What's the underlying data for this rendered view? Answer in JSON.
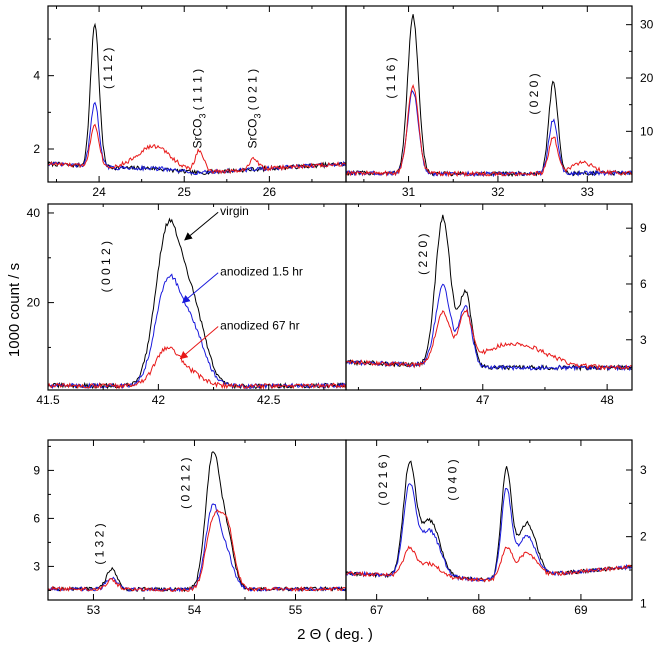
{
  "figure": {
    "ylabel": "1000 count / s",
    "xlabel": "2 Θ ( deg. )"
  },
  "chart_data": [
    {
      "type": "line",
      "panel": "top-left",
      "xlim": [
        23.4,
        26.9
      ],
      "ylim": [
        1.1,
        5.9
      ],
      "xticks": [
        24,
        25,
        26
      ],
      "yticks": [
        2,
        4
      ],
      "yaxis_side": "left",
      "tick_labels_x": [
        "24",
        "25",
        "26"
      ],
      "tick_labels_y": [
        "2",
        "4"
      ],
      "annotations": [
        {
          "text": "( 1 1 2 )",
          "x": 24.15,
          "y": 4.2,
          "rotate": true
        },
        {
          "text": "SrCO₃ ( 1 1 1 )",
          "x": 25.2,
          "y": 3.1,
          "rotate": true
        },
        {
          "text": "SrCO₃ ( 0 2 1 )",
          "x": 25.85,
          "y": 3.1,
          "rotate": true
        }
      ],
      "baseline": [
        1.6,
        1.35,
        1.6
      ],
      "peaks": [
        [
          23.95,
          0.05
        ],
        [
          24.65,
          0.2
        ],
        [
          25.18,
          0.05
        ],
        [
          25.82,
          0.05
        ]
      ],
      "series": [
        {
          "name": "virgin",
          "color": "#000000",
          "amps": [
            3.9,
            0.05,
            0.0,
            0.0
          ]
        },
        {
          "name": "anodized 1.5 hr",
          "color": "#1a1adc",
          "amps": [
            1.7,
            0.05,
            0.0,
            0.0
          ]
        },
        {
          "name": "anodized 67 hr",
          "color": "#e81818",
          "amps": [
            1.15,
            0.65,
            0.6,
            0.3
          ]
        }
      ]
    },
    {
      "type": "line",
      "panel": "top-right",
      "xlim": [
        30.3,
        33.5
      ],
      "ylim": [
        0.5,
        33.5
      ],
      "xticks": [
        31,
        32,
        33
      ],
      "yticks": [
        10,
        20,
        30
      ],
      "yaxis_side": "right",
      "tick_labels_x": [
        "31",
        "32",
        "33"
      ],
      "tick_labels_y": [
        "10",
        "20",
        "30"
      ],
      "annotations": [
        {
          "text": "( 1 1 6 )",
          "x": 30.85,
          "y": 20,
          "rotate": true
        },
        {
          "text": "( 0 2 0 )",
          "x": 32.45,
          "y": 17,
          "rotate": true
        }
      ],
      "baseline": [
        2.2,
        2.0,
        2.2
      ],
      "peaks": [
        [
          31.05,
          0.06
        ],
        [
          32.62,
          0.05
        ],
        [
          32.95,
          0.12
        ]
      ],
      "series": [
        {
          "name": "virgin",
          "color": "#000000",
          "amps": [
            29.5,
            17.2,
            0.0
          ]
        },
        {
          "name": "anodized 1.5 hr",
          "color": "#1a1adc",
          "amps": [
            15.5,
            10.2,
            0.0
          ]
        },
        {
          "name": "anodized 67 hr",
          "color": "#e81818",
          "amps": [
            16.5,
            6.8,
            2.0
          ]
        }
      ]
    },
    {
      "type": "line",
      "panel": "middle-left",
      "xlim": [
        41.5,
        42.85
      ],
      "ylim": [
        0.5,
        42
      ],
      "xticks": [
        41.5,
        42,
        42.5
      ],
      "yticks": [
        20,
        40
      ],
      "yaxis_side": "left",
      "tick_labels_x": [
        "41.5",
        "42",
        "42.5"
      ],
      "tick_labels_y": [
        "20",
        "40"
      ],
      "annotations": [
        {
          "text": "( 0 0 1 2 )",
          "x": 41.78,
          "y": 28,
          "rotate": true
        }
      ],
      "labels": [
        {
          "text": "virgin",
          "x": 42.28,
          "y": 39.5,
          "arrow_to": [
            42.12,
            34
          ],
          "color": "#000000"
        },
        {
          "text": "anodized 1.5 hr",
          "x": 42.28,
          "y": 26,
          "arrow_to": [
            42.11,
            20
          ],
          "color": "#1a1adc"
        },
        {
          "text": "anodized 67 hr",
          "x": 42.28,
          "y": 14,
          "arrow_to": [
            42.1,
            7.5
          ],
          "color": "#e81818"
        }
      ],
      "baseline": [
        1.5,
        1.3,
        1.5
      ],
      "peaks": [
        [
          42.04,
          0.055
        ],
        [
          42.15,
          0.06
        ]
      ],
      "series": [
        {
          "name": "virgin",
          "color": "#000000",
          "amps": [
            33.0,
            18.0
          ]
        },
        {
          "name": "anodized 1.5 hr",
          "color": "#1a1adc",
          "amps": [
            22.0,
            12.5
          ]
        },
        {
          "name": "anodized 67 hr",
          "color": "#e81818",
          "amps": [
            8.2,
            2.5
          ]
        }
      ]
    },
    {
      "type": "line",
      "panel": "middle-right",
      "xlim": [
        45.9,
        48.2
      ],
      "ylim": [
        0.3,
        10.3
      ],
      "xticks": [
        47,
        48
      ],
      "yticks": [
        3,
        6,
        9
      ],
      "yaxis_side": "right",
      "tick_labels_x": [
        "47",
        "48"
      ],
      "tick_labels_y": [
        "3",
        "6",
        "9"
      ],
      "annotations": [
        {
          "text": "( 2 2 0 )",
          "x": 46.55,
          "y": 7.6,
          "rotate": true
        }
      ],
      "baseline": [
        1.8,
        1.5,
        1.5
      ],
      "peaks": [
        [
          46.68,
          0.06
        ],
        [
          46.86,
          0.05
        ],
        [
          47.25,
          0.25
        ]
      ],
      "series": [
        {
          "name": "virgin",
          "color": "#000000",
          "amps": [
            8.0,
            4.0,
            0.0
          ]
        },
        {
          "name": "anodized 1.5 hr",
          "color": "#1a1adc",
          "amps": [
            4.3,
            3.2,
            0.0
          ]
        },
        {
          "name": "anodized 67 hr",
          "color": "#e81818",
          "amps": [
            2.8,
            2.6,
            1.3
          ]
        }
      ]
    },
    {
      "type": "line",
      "panel": "bottom-left",
      "xlim": [
        52.55,
        55.5
      ],
      "ylim": [
        0.9,
        10.9
      ],
      "xticks": [
        53,
        54,
        55
      ],
      "yticks": [
        3,
        6,
        9
      ],
      "yaxis_side": "left",
      "tick_labels_x": [
        "53",
        "54",
        "55"
      ],
      "tick_labels_y": [
        "3",
        "6",
        "9"
      ],
      "annotations": [
        {
          "text": "( 1 3 2 )",
          "x": 53.1,
          "y": 4.4,
          "rotate": true
        },
        {
          "text": "( 0 2 1 2 )",
          "x": 53.95,
          "y": 8.2,
          "rotate": true
        }
      ],
      "baseline": [
        1.6,
        1.55,
        1.6
      ],
      "peaks": [
        [
          53.18,
          0.05
        ],
        [
          54.18,
          0.07
        ],
        [
          54.32,
          0.07
        ]
      ],
      "series": [
        {
          "name": "virgin",
          "color": "#000000",
          "amps": [
            1.3,
            8.2,
            3.2
          ]
        },
        {
          "name": "anodized 1.5 hr",
          "color": "#1a1adc",
          "amps": [
            0.7,
            5.0,
            2.0
          ]
        },
        {
          "name": "anodized 67 hr",
          "color": "#e81818",
          "amps": [
            0.6,
            4.0,
            4.0
          ]
        }
      ]
    },
    {
      "type": "line",
      "panel": "bottom-right",
      "xlim": [
        66.7,
        69.5
      ],
      "ylim": [
        1.05,
        3.45
      ],
      "xticks": [
        67,
        68,
        69
      ],
      "yticks": [
        1,
        2,
        3
      ],
      "yaxis_side": "right",
      "tick_labels_x": [
        "67",
        "68",
        "69"
      ],
      "tick_labels_y": [
        "1",
        "2",
        "3"
      ],
      "annotations": [
        {
          "text": "( 0 2 1 6 )",
          "x": 67.1,
          "y": 2.85,
          "rotate": true
        },
        {
          "text": "( 0 4 0 )",
          "x": 67.78,
          "y": 2.85,
          "rotate": true
        }
      ],
      "baseline": [
        1.45,
        1.35,
        1.55
      ],
      "peaks": [
        [
          67.32,
          0.06
        ],
        [
          67.52,
          0.1
        ],
        [
          68.27,
          0.05
        ],
        [
          68.47,
          0.09
        ]
      ],
      "series": [
        {
          "name": "virgin",
          "color": "#000000",
          "amps": [
            1.6,
            0.85,
            1.6,
            0.8
          ]
        },
        {
          "name": "anodized 1.5 hr",
          "color": "#1a1adc",
          "amps": [
            1.3,
            0.7,
            1.3,
            0.6
          ]
        },
        {
          "name": "anodized 67 hr",
          "color": "#e81818",
          "amps": [
            0.4,
            0.2,
            0.45,
            0.35
          ]
        }
      ]
    }
  ]
}
